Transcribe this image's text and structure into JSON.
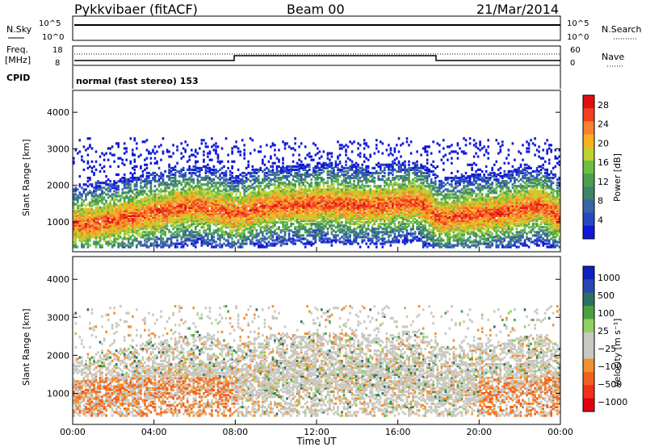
{
  "header": {
    "station": "Pykkvibaer (fitACF)",
    "beam": "Beam 00",
    "date": "21/Mar/2014"
  },
  "top_panels": {
    "nsky_label": "N.Sky",
    "nsky_ticks": [
      "10^5",
      "10^0"
    ],
    "nsearch_label": "N.Search",
    "nsearch_ticks": [
      "10^5",
      "10^0"
    ],
    "freq_label": "Freq.",
    "freq_unit": "[MHz]",
    "freq_ticks": [
      "18",
      "8"
    ],
    "nave_label": "Nave",
    "nave_ticks": [
      "60",
      "0"
    ],
    "cpid_label": "CPID",
    "cpid_text": "normal (fast stereo) 153"
  },
  "colors": {
    "power_scale": [
      "#1018d8",
      "#2848c0",
      "#3a64a8",
      "#3f8468",
      "#4aa050",
      "#6cc040",
      "#c0d030",
      "#f8b020",
      "#f88030",
      "#f04020",
      "#e01010"
    ],
    "velocity_scale": [
      "#e00010",
      "#f03018",
      "#f06020",
      "#f09030",
      "#c8c8c0",
      "#c8c8c0",
      "#90d060",
      "#4aa040",
      "#2e7060",
      "#2848b0",
      "#1020c0"
    ]
  },
  "chart_data": [
    {
      "type": "heatmap",
      "name": "power",
      "xlabel": "",
      "ylabel": "Slant Range [km]",
      "x_ticks": [
        "00:00",
        "04:00",
        "08:00",
        "12:00",
        "16:00",
        "20:00",
        "00:00"
      ],
      "y_ticks": [
        1000,
        2000,
        3000,
        4000
      ],
      "xlim": [
        0,
        24
      ],
      "ylim": [
        180,
        4600
      ],
      "colorbar_label": "Power [dB]",
      "colorbar_ticks": [
        4,
        8,
        12,
        16,
        20,
        24,
        28
      ],
      "colorbar_range": [
        0,
        30
      ],
      "bands": [
        {
          "x": [
            0,
            1,
            2,
            3,
            4,
            5,
            6,
            7,
            8,
            9,
            10,
            11,
            12,
            13,
            14,
            15,
            16,
            17,
            18,
            19,
            20,
            21,
            22,
            23,
            24
          ],
          "y": [
            900,
            950,
            1050,
            1150,
            1250,
            1350,
            1450,
            1350,
            1200,
            1350,
            1450,
            1450,
            1500,
            1500,
            1450,
            1450,
            1500,
            1550,
            1100,
            1150,
            1200,
            1250,
            1350,
            1450,
            1100
          ],
          "thickness": 420,
          "value": 24
        }
      ]
    },
    {
      "type": "heatmap",
      "name": "velocity",
      "xlabel": "Time UT",
      "ylabel": "Slant Range [km]",
      "x_ticks": [
        "00:00",
        "04:00",
        "08:00",
        "12:00",
        "16:00",
        "20:00",
        "00:00"
      ],
      "y_ticks": [
        1000,
        2000,
        3000,
        4000
      ],
      "xlim": [
        0,
        24
      ],
      "ylim": [
        180,
        4600
      ],
      "colorbar_label": "Velocity [m s⁻¹]",
      "colorbar_ticks": [
        "1000",
        "500",
        "100",
        "25",
        "−25",
        "−100",
        "−500",
        "−1000"
      ]
    }
  ]
}
